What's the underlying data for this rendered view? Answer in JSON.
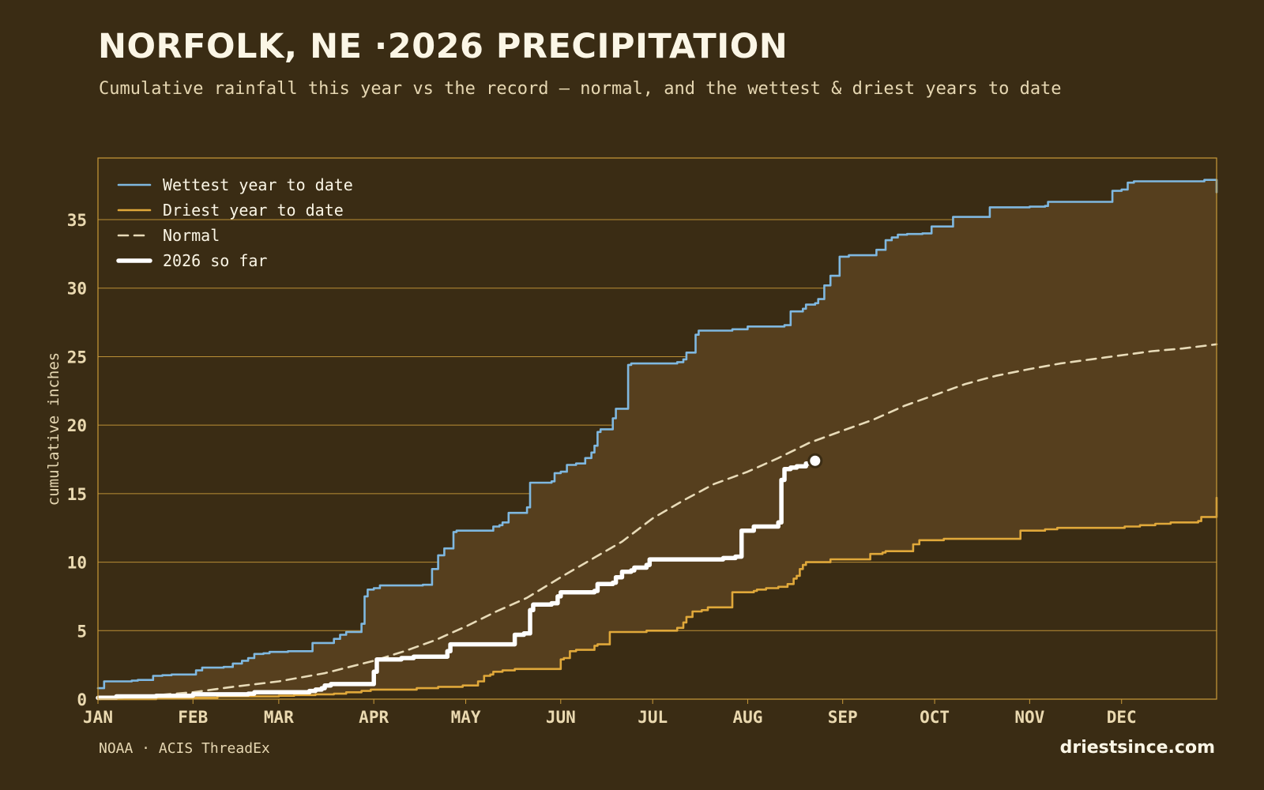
{
  "header": {
    "title": "NORFOLK, NE ·2026 PRECIPITATION",
    "subtitle": "Cumulative rainfall this year vs the record — normal, and the wettest & driest years to date"
  },
  "footer": {
    "source": "NOAA · ACIS ThreadEx",
    "site": "driestsince.com"
  },
  "colors": {
    "background": "#3a2c14",
    "band_fill": "#563f1e",
    "grid": "#c99a3a",
    "wettest": "#7fb8e0",
    "driest": "#e0a83a",
    "normal": "#e8dbb8",
    "current": "#ffffff"
  },
  "chart_data": {
    "type": "line",
    "title": "NORFOLK, NE ·2026 PRECIPITATION",
    "subtitle": "Cumulative rainfall this year vs the record — normal, and the wettest & driest years to date",
    "xlabel": "",
    "ylabel": "cumulative inches",
    "x_unit": "day of year",
    "xlim": [
      1,
      366
    ],
    "ylim": [
      0,
      39.5
    ],
    "yticks": [
      0,
      5,
      10,
      15,
      20,
      25,
      30,
      35
    ],
    "xticks": [
      {
        "label": "JAN",
        "day": 1
      },
      {
        "label": "FEB",
        "day": 32
      },
      {
        "label": "MAR",
        "day": 60
      },
      {
        "label": "APR",
        "day": 91
      },
      {
        "label": "MAY",
        "day": 121
      },
      {
        "label": "JUN",
        "day": 152
      },
      {
        "label": "JUL",
        "day": 182
      },
      {
        "label": "AUG",
        "day": 213
      },
      {
        "label": "SEP",
        "day": 244
      },
      {
        "label": "OCT",
        "day": 274
      },
      {
        "label": "NOV",
        "day": 305
      },
      {
        "label": "DEC",
        "day": 335
      }
    ],
    "grid": true,
    "legend_position": "top-left",
    "band": {
      "upper": "Wettest year to date",
      "lower": "Driest year to date"
    },
    "series": [
      {
        "name": "Wettest year to date",
        "style": "solid",
        "color": "#7fb8e0",
        "points": [
          [
            1,
            0.8
          ],
          [
            2,
            0.8
          ],
          [
            3,
            1.3
          ],
          [
            8,
            1.3
          ],
          [
            12,
            1.35
          ],
          [
            14,
            1.4
          ],
          [
            18,
            1.4
          ],
          [
            19,
            1.7
          ],
          [
            22,
            1.75
          ],
          [
            25,
            1.8
          ],
          [
            32,
            1.8
          ],
          [
            33,
            2.1
          ],
          [
            35,
            2.3
          ],
          [
            42,
            2.35
          ],
          [
            45,
            2.6
          ],
          [
            48,
            2.8
          ],
          [
            50,
            3.0
          ],
          [
            52,
            3.3
          ],
          [
            55,
            3.35
          ],
          [
            57,
            3.45
          ],
          [
            63,
            3.5
          ],
          [
            70,
            3.5
          ],
          [
            71,
            4.1
          ],
          [
            76,
            4.1
          ],
          [
            78,
            4.4
          ],
          [
            80,
            4.7
          ],
          [
            82,
            4.9
          ],
          [
            86,
            4.9
          ],
          [
            87,
            5.5
          ],
          [
            88,
            7.5
          ],
          [
            89,
            8.0
          ],
          [
            91,
            8.1
          ],
          [
            93,
            8.3
          ],
          [
            100,
            8.3
          ],
          [
            107,
            8.35
          ],
          [
            110,
            9.5
          ],
          [
            112,
            10.5
          ],
          [
            114,
            11.0
          ],
          [
            116,
            11.0
          ],
          [
            117,
            12.2
          ],
          [
            118,
            12.3
          ],
          [
            127,
            12.3
          ],
          [
            130,
            12.6
          ],
          [
            132,
            12.7
          ],
          [
            133,
            12.9
          ],
          [
            135,
            13.6
          ],
          [
            139,
            13.6
          ],
          [
            141,
            14.0
          ],
          [
            142,
            15.8
          ],
          [
            149,
            15.9
          ],
          [
            150,
            16.5
          ],
          [
            152,
            16.6
          ],
          [
            154,
            17.1
          ],
          [
            157,
            17.2
          ],
          [
            160,
            17.6
          ],
          [
            162,
            18.0
          ],
          [
            163,
            18.5
          ],
          [
            164,
            19.5
          ],
          [
            165,
            19.7
          ],
          [
            168,
            19.7
          ],
          [
            169,
            20.5
          ],
          [
            170,
            21.2
          ],
          [
            171,
            21.2
          ],
          [
            174,
            24.4
          ],
          [
            175,
            24.5
          ],
          [
            186,
            24.5
          ],
          [
            190,
            24.6
          ],
          [
            192,
            24.8
          ],
          [
            193,
            25.3
          ],
          [
            195,
            25.3
          ],
          [
            196,
            26.6
          ],
          [
            197,
            26.9
          ],
          [
            206,
            26.9
          ],
          [
            208,
            27.0
          ],
          [
            211,
            27.0
          ],
          [
            213,
            27.2
          ],
          [
            220,
            27.2
          ],
          [
            225,
            27.3
          ],
          [
            227,
            28.3
          ],
          [
            231,
            28.5
          ],
          [
            232,
            28.8
          ],
          [
            235,
            28.9
          ],
          [
            236,
            29.2
          ],
          [
            238,
            30.2
          ],
          [
            240,
            30.9
          ],
          [
            242,
            30.9
          ],
          [
            243,
            32.3
          ],
          [
            246,
            32.4
          ],
          [
            250,
            32.4
          ],
          [
            255,
            32.8
          ],
          [
            257,
            32.8
          ],
          [
            258,
            33.5
          ],
          [
            260,
            33.7
          ],
          [
            262,
            33.9
          ],
          [
            265,
            33.95
          ],
          [
            270,
            34.0
          ],
          [
            272,
            34.0
          ],
          [
            273,
            34.5
          ],
          [
            278,
            34.5
          ],
          [
            280,
            35.2
          ],
          [
            291,
            35.2
          ],
          [
            292,
            35.9
          ],
          [
            305,
            35.95
          ],
          [
            310,
            36.0
          ],
          [
            311,
            36.3
          ],
          [
            331,
            36.3
          ],
          [
            332,
            37.1
          ],
          [
            335,
            37.2
          ],
          [
            337,
            37.7
          ],
          [
            339,
            37.8
          ],
          [
            361,
            37.8
          ],
          [
            362,
            37.9
          ],
          [
            365,
            37.9
          ],
          [
            366,
            37.0
          ]
        ]
      },
      {
        "name": "Driest year to date",
        "style": "solid",
        "color": "#e0a83a",
        "points": [
          [
            1,
            0.0
          ],
          [
            20,
            0.1
          ],
          [
            40,
            0.2
          ],
          [
            60,
            0.25
          ],
          [
            65,
            0.3
          ],
          [
            72,
            0.35
          ],
          [
            78,
            0.4
          ],
          [
            82,
            0.5
          ],
          [
            85,
            0.5
          ],
          [
            87,
            0.6
          ],
          [
            90,
            0.7
          ],
          [
            100,
            0.7
          ],
          [
            105,
            0.8
          ],
          [
            112,
            0.9
          ],
          [
            120,
            1.0
          ],
          [
            124,
            1.0
          ],
          [
            125,
            1.3
          ],
          [
            127,
            1.7
          ],
          [
            129,
            1.8
          ],
          [
            130,
            2.0
          ],
          [
            133,
            2.1
          ],
          [
            135,
            2.1
          ],
          [
            137,
            2.2
          ],
          [
            150,
            2.2
          ],
          [
            152,
            2.9
          ],
          [
            153,
            3.0
          ],
          [
            155,
            3.5
          ],
          [
            157,
            3.6
          ],
          [
            162,
            3.6
          ],
          [
            163,
            3.9
          ],
          [
            164,
            4.0
          ],
          [
            166,
            4.0
          ],
          [
            168,
            4.9
          ],
          [
            174,
            4.9
          ],
          [
            180,
            5.0
          ],
          [
            189,
            5.0
          ],
          [
            190,
            5.2
          ],
          [
            192,
            5.6
          ],
          [
            193,
            6.0
          ],
          [
            195,
            6.4
          ],
          [
            198,
            6.5
          ],
          [
            200,
            6.7
          ],
          [
            206,
            6.7
          ],
          [
            208,
            7.8
          ],
          [
            215,
            7.9
          ],
          [
            216,
            8.0
          ],
          [
            219,
            8.1
          ],
          [
            222,
            8.1
          ],
          [
            223,
            8.2
          ],
          [
            226,
            8.4
          ],
          [
            228,
            8.8
          ],
          [
            229,
            9.0
          ],
          [
            230,
            9.5
          ],
          [
            231,
            9.8
          ],
          [
            232,
            10.0
          ],
          [
            240,
            10.2
          ],
          [
            250,
            10.2
          ],
          [
            253,
            10.6
          ],
          [
            257,
            10.7
          ],
          [
            258,
            10.8
          ],
          [
            263,
            10.8
          ],
          [
            266,
            10.8
          ],
          [
            267,
            11.3
          ],
          [
            269,
            11.6
          ],
          [
            277,
            11.7
          ],
          [
            290,
            11.7
          ],
          [
            301,
            11.7
          ],
          [
            302,
            12.3
          ],
          [
            310,
            12.4
          ],
          [
            314,
            12.5
          ],
          [
            322,
            12.5
          ],
          [
            335,
            12.5
          ],
          [
            336,
            12.6
          ],
          [
            341,
            12.7
          ],
          [
            346,
            12.8
          ],
          [
            351,
            12.9
          ],
          [
            360,
            13.0
          ],
          [
            361,
            13.3
          ],
          [
            364,
            13.3
          ],
          [
            366,
            14.7
          ]
        ]
      },
      {
        "name": "Normal",
        "style": "dashed",
        "color": "#e8dbb8",
        "points": [
          [
            1,
            0.0
          ],
          [
            15,
            0.2
          ],
          [
            32,
            0.5
          ],
          [
            45,
            0.9
          ],
          [
            60,
            1.3
          ],
          [
            75,
            1.9
          ],
          [
            91,
            2.8
          ],
          [
            101,
            3.5
          ],
          [
            111,
            4.3
          ],
          [
            121,
            5.3
          ],
          [
            131,
            6.4
          ],
          [
            141,
            7.4
          ],
          [
            152,
            8.9
          ],
          [
            162,
            10.2
          ],
          [
            172,
            11.5
          ],
          [
            182,
            13.2
          ],
          [
            192,
            14.5
          ],
          [
            202,
            15.7
          ],
          [
            213,
            16.6
          ],
          [
            223,
            17.6
          ],
          [
            233,
            18.7
          ],
          [
            244,
            19.6
          ],
          [
            254,
            20.4
          ],
          [
            264,
            21.4
          ],
          [
            274,
            22.2
          ],
          [
            284,
            23.0
          ],
          [
            294,
            23.6
          ],
          [
            305,
            24.1
          ],
          [
            315,
            24.5
          ],
          [
            325,
            24.8
          ],
          [
            335,
            25.1
          ],
          [
            345,
            25.4
          ],
          [
            355,
            25.6
          ],
          [
            366,
            25.9
          ]
        ]
      },
      {
        "name": "2026 so far",
        "style": "bold",
        "color": "#ffffff",
        "points": [
          [
            1,
            0.1
          ],
          [
            5,
            0.1
          ],
          [
            7,
            0.2
          ],
          [
            20,
            0.25
          ],
          [
            32,
            0.35
          ],
          [
            50,
            0.4
          ],
          [
            52,
            0.5
          ],
          [
            68,
            0.5
          ],
          [
            70,
            0.6
          ],
          [
            72,
            0.7
          ],
          [
            74,
            0.8
          ],
          [
            75,
            1.0
          ],
          [
            77,
            1.1
          ],
          [
            90,
            1.1
          ],
          [
            91,
            2.0
          ],
          [
            92,
            2.9
          ],
          [
            96,
            2.9
          ],
          [
            100,
            3.0
          ],
          [
            103,
            3.0
          ],
          [
            104,
            3.1
          ],
          [
            114,
            3.1
          ],
          [
            115,
            3.5
          ],
          [
            116,
            4.0
          ],
          [
            136,
            4.0
          ],
          [
            137,
            4.7
          ],
          [
            140,
            4.8
          ],
          [
            142,
            6.5
          ],
          [
            143,
            6.9
          ],
          [
            146,
            6.9
          ],
          [
            149,
            7.0
          ],
          [
            151,
            7.5
          ],
          [
            152,
            7.8
          ],
          [
            158,
            7.8
          ],
          [
            163,
            7.9
          ],
          [
            164,
            8.4
          ],
          [
            169,
            8.5
          ],
          [
            170,
            8.9
          ],
          [
            172,
            9.3
          ],
          [
            175,
            9.4
          ],
          [
            176,
            9.6
          ],
          [
            178,
            9.6
          ],
          [
            180,
            9.8
          ],
          [
            181,
            10.2
          ],
          [
            190,
            10.2
          ],
          [
            204,
            10.2
          ],
          [
            205,
            10.3
          ],
          [
            209,
            10.4
          ],
          [
            210,
            10.4
          ],
          [
            211,
            12.3
          ],
          [
            214,
            12.3
          ],
          [
            215,
            12.6
          ],
          [
            222,
            12.6
          ],
          [
            223,
            12.9
          ],
          [
            224,
            16.0
          ],
          [
            225,
            16.8
          ],
          [
            227,
            16.9
          ],
          [
            229,
            17.0
          ],
          [
            232,
            17.2
          ],
          [
            235,
            17.4
          ]
        ]
      }
    ]
  }
}
